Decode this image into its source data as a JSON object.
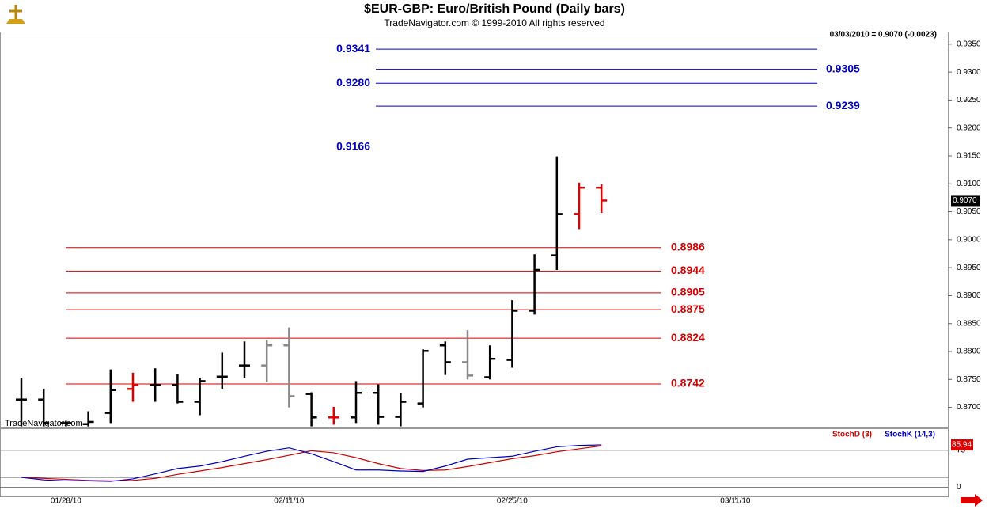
{
  "chart_data": [
    {
      "type": "ohlc",
      "title": "$EUR-GBP:  Euro/British Pound  (Daily bars)",
      "subtitle": "TradeNavigator.com © 1999-2010 All rights reserved",
      "info": "03/03/2010 = 0.9070 (-0.0023)",
      "watermark": "TradeNavigator.com",
      "categories": [
        null,
        null,
        "01/28/10",
        null,
        null,
        null,
        null,
        null,
        null,
        null,
        null,
        null,
        "02/11/10",
        null,
        null,
        null,
        null,
        null,
        null,
        null,
        null,
        null,
        "02/25/10",
        null,
        null,
        null,
        null,
        null,
        null,
        null,
        null,
        null,
        "03/11/10"
      ],
      "open": [
        0.8714,
        0.8714,
        0.8672,
        0.867,
        0.869,
        0.8733,
        0.874,
        0.874,
        0.871,
        0.8755,
        0.8775,
        0.8775,
        0.8811,
        0.8724,
        0.8682,
        0.8682,
        0.8726,
        0.8683,
        0.8707,
        0.8811,
        0.8781,
        0.8754,
        0.8785,
        0.8873,
        0.8972,
        0.9046,
        0.9093,
        null,
        null,
        null,
        null,
        null,
        null
      ],
      "high": [
        0.8753,
        0.8733,
        0.8676,
        0.8693,
        0.8768,
        0.8762,
        0.877,
        0.876,
        0.8753,
        0.8798,
        0.8818,
        0.8821,
        0.8843,
        0.8727,
        0.8701,
        0.8747,
        0.8741,
        0.8726,
        0.8804,
        0.8818,
        0.8838,
        0.8811,
        0.8892,
        0.8974,
        0.9149,
        0.9102,
        0.9099,
        null,
        null,
        null,
        null,
        null,
        null
      ],
      "low": [
        0.8666,
        0.8666,
        0.8666,
        0.8666,
        0.8672,
        0.871,
        0.871,
        0.8707,
        0.8686,
        0.8733,
        0.8753,
        0.8745,
        0.87,
        0.8666,
        0.8669,
        0.8672,
        0.8669,
        0.8666,
        0.87,
        0.8758,
        0.875,
        0.875,
        0.8771,
        0.8866,
        0.8946,
        0.9019,
        0.9048,
        null,
        null,
        null,
        null,
        null,
        null
      ],
      "close": [
        0.8714,
        0.8672,
        0.8672,
        0.8674,
        0.8731,
        0.874,
        0.874,
        0.871,
        0.8747,
        0.8755,
        0.8775,
        0.8811,
        0.872,
        0.8682,
        0.8682,
        0.8726,
        0.8683,
        0.871,
        0.8801,
        0.8781,
        0.8757,
        0.8787,
        0.8873,
        0.8946,
        0.9046,
        0.9093,
        0.907,
        null,
        null,
        null,
        null,
        null,
        null
      ],
      "colors": [
        "#000",
        "#000",
        "#000",
        "#000",
        "#000",
        "#e00000",
        "#000",
        "#000",
        "#000",
        "#000",
        "#000",
        "#888",
        "#888",
        "#000",
        "#e00000",
        "#000",
        "#000",
        "#000",
        "#000",
        "#000",
        "#888",
        "#000",
        "#000",
        "#000",
        "#000",
        "#e00000",
        "#e00000",
        null,
        null,
        null,
        null,
        null,
        null
      ],
      "last_price": {
        "value": 0.907,
        "label": "0.9070"
      },
      "ylim": [
        0.8664,
        0.9371
      ],
      "yticks": [
        {
          "value": 0.87,
          "label": "0.8700"
        },
        {
          "value": 0.875,
          "label": "0.8750"
        },
        {
          "value": 0.88,
          "label": "0.8800"
        },
        {
          "value": 0.885,
          "label": "0.8850"
        },
        {
          "value": 0.89,
          "label": "0.8900"
        },
        {
          "value": 0.895,
          "label": "0.8950"
        },
        {
          "value": 0.9,
          "label": "0.9000"
        },
        {
          "value": 0.905,
          "label": "0.9050"
        },
        {
          "value": 0.91,
          "label": "0.9100"
        },
        {
          "value": 0.915,
          "label": "0.9150"
        },
        {
          "value": 0.92,
          "label": "0.9200"
        },
        {
          "value": 0.925,
          "label": "0.9250"
        },
        {
          "value": 0.93,
          "label": "0.9300"
        },
        {
          "value": 0.935,
          "label": "0.9350"
        }
      ],
      "upper_levels": {
        "color": "#0000c0",
        "values": [
          0.9341,
          0.9305,
          {
            "value": 0.928,
            "label": "0.9280"
          },
          0.9239,
          {
            "value": 0.9166,
            "line": false
          }
        ]
      },
      "lower_levels": {
        "color": "#d00000",
        "values": [
          0.8986,
          0.8944,
          0.8905,
          0.8875,
          0.8824,
          0.8742
        ]
      }
    },
    {
      "type": "line",
      "series": [
        {
          "name": "StochD (3)",
          "color": "#d00000",
          "values": [
            20,
            18,
            16,
            14,
            13,
            14,
            18,
            26,
            33,
            40,
            48,
            56,
            65,
            74,
            70,
            60,
            48,
            38,
            34,
            35,
            42,
            50,
            58,
            64,
            72,
            78,
            84,
            null,
            null,
            null,
            null,
            null,
            null
          ]
        },
        {
          "name": "StochK (14,3)",
          "color": "#0000c0",
          "values": [
            20,
            15,
            13,
            13,
            12,
            17,
            27,
            38,
            43,
            52,
            63,
            73,
            80,
            68,
            52,
            35,
            35,
            33,
            32,
            43,
            57,
            60,
            63,
            73,
            82,
            85,
            85.94,
            null,
            null,
            null,
            null,
            null,
            null
          ]
        }
      ],
      "last_value": {
        "value": 85.94,
        "label": "85.94"
      },
      "ylim": [
        -20,
        118
      ],
      "yticks": [
        0,
        75
      ],
      "levels": [
        20
      ]
    }
  ]
}
